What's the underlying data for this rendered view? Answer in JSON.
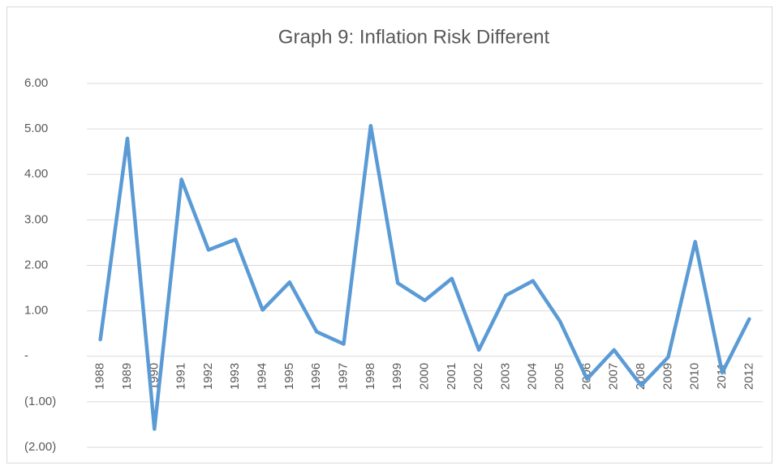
{
  "chart_data": {
    "type": "line",
    "title": "Graph 9: Inflation Risk Different",
    "categories": [
      "1988",
      "1989",
      "1990",
      "1991",
      "1992",
      "1993",
      "1994",
      "1995",
      "1996",
      "1997",
      "1998",
      "1999",
      "2000",
      "2001",
      "2002",
      "2003",
      "2004",
      "2005",
      "2006",
      "2007",
      "2008",
      "2009",
      "2010",
      "2011",
      "2012"
    ],
    "series": [
      {
        "name": "Inflation Risk Different",
        "color": "#5b9bd5",
        "values": [
          0.37,
          4.79,
          -1.6,
          3.89,
          2.34,
          2.57,
          1.02,
          1.63,
          0.54,
          0.27,
          5.07,
          1.61,
          1.23,
          1.71,
          0.14,
          1.34,
          1.66,
          0.77,
          -0.5,
          0.14,
          -0.64,
          -0.02,
          2.52,
          -0.36,
          0.82
        ]
      }
    ],
    "ylim": [
      -2,
      6
    ],
    "yticks": [
      {
        "value": -2,
        "label": "(2.00)"
      },
      {
        "value": -1,
        "label": "(1.00)"
      },
      {
        "value": 0,
        "label": "-"
      },
      {
        "value": 1,
        "label": "1.00"
      },
      {
        "value": 2,
        "label": "2.00"
      },
      {
        "value": 3,
        "label": "3.00"
      },
      {
        "value": 4,
        "label": "4.00"
      },
      {
        "value": 5,
        "label": "5.00"
      },
      {
        "value": 6,
        "label": "6.00"
      }
    ],
    "grid": true
  }
}
